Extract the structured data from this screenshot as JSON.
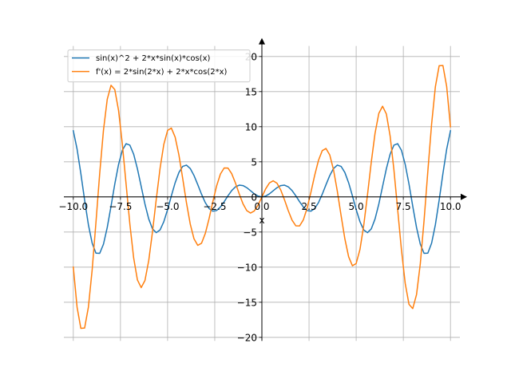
{
  "chart_data": {
    "type": "line",
    "title": "",
    "xlabel": "x",
    "ylabel": "",
    "xlim": [
      -10.5,
      10.5
    ],
    "ylim": [
      -20.5,
      21.5
    ],
    "x_ticks": [
      -10.0,
      -7.5,
      -5.0,
      -2.5,
      0.0,
      2.5,
      5.0,
      7.5,
      10.0
    ],
    "x_tick_labels": [
      "−10.0",
      "−7.5",
      "−5.0",
      "−2.5",
      "0.0",
      "2.5",
      "5.0",
      "7.5",
      "10.0"
    ],
    "y_ticks": [
      -20,
      -15,
      -10,
      -5,
      0,
      5,
      10,
      15,
      20
    ],
    "y_tick_labels": [
      "−20",
      "−15",
      "−10",
      "−5",
      "0",
      "5",
      "10",
      "15",
      "20"
    ],
    "grid": true,
    "legend_position": "top-left",
    "x_range": [
      -10,
      10
    ],
    "samples": 101,
    "series": [
      {
        "name": "sin(x)^2 + 2*x*sin(x)*cos(x)",
        "expression": "sin(x)^2 + 2*x*sin(x)*cos(x)",
        "color": "#1f77b4"
      },
      {
        "name": "f'(x) = 2*sin(2*x) + 2*x*cos(2*x)",
        "expression": "2*sin(2*x) + 2*x*cos(2*x)",
        "color": "#ff7f0e"
      }
    ]
  },
  "colors": {
    "grid": "#b0b0b0",
    "axis": "#000000",
    "legend_border": "#cccccc"
  }
}
